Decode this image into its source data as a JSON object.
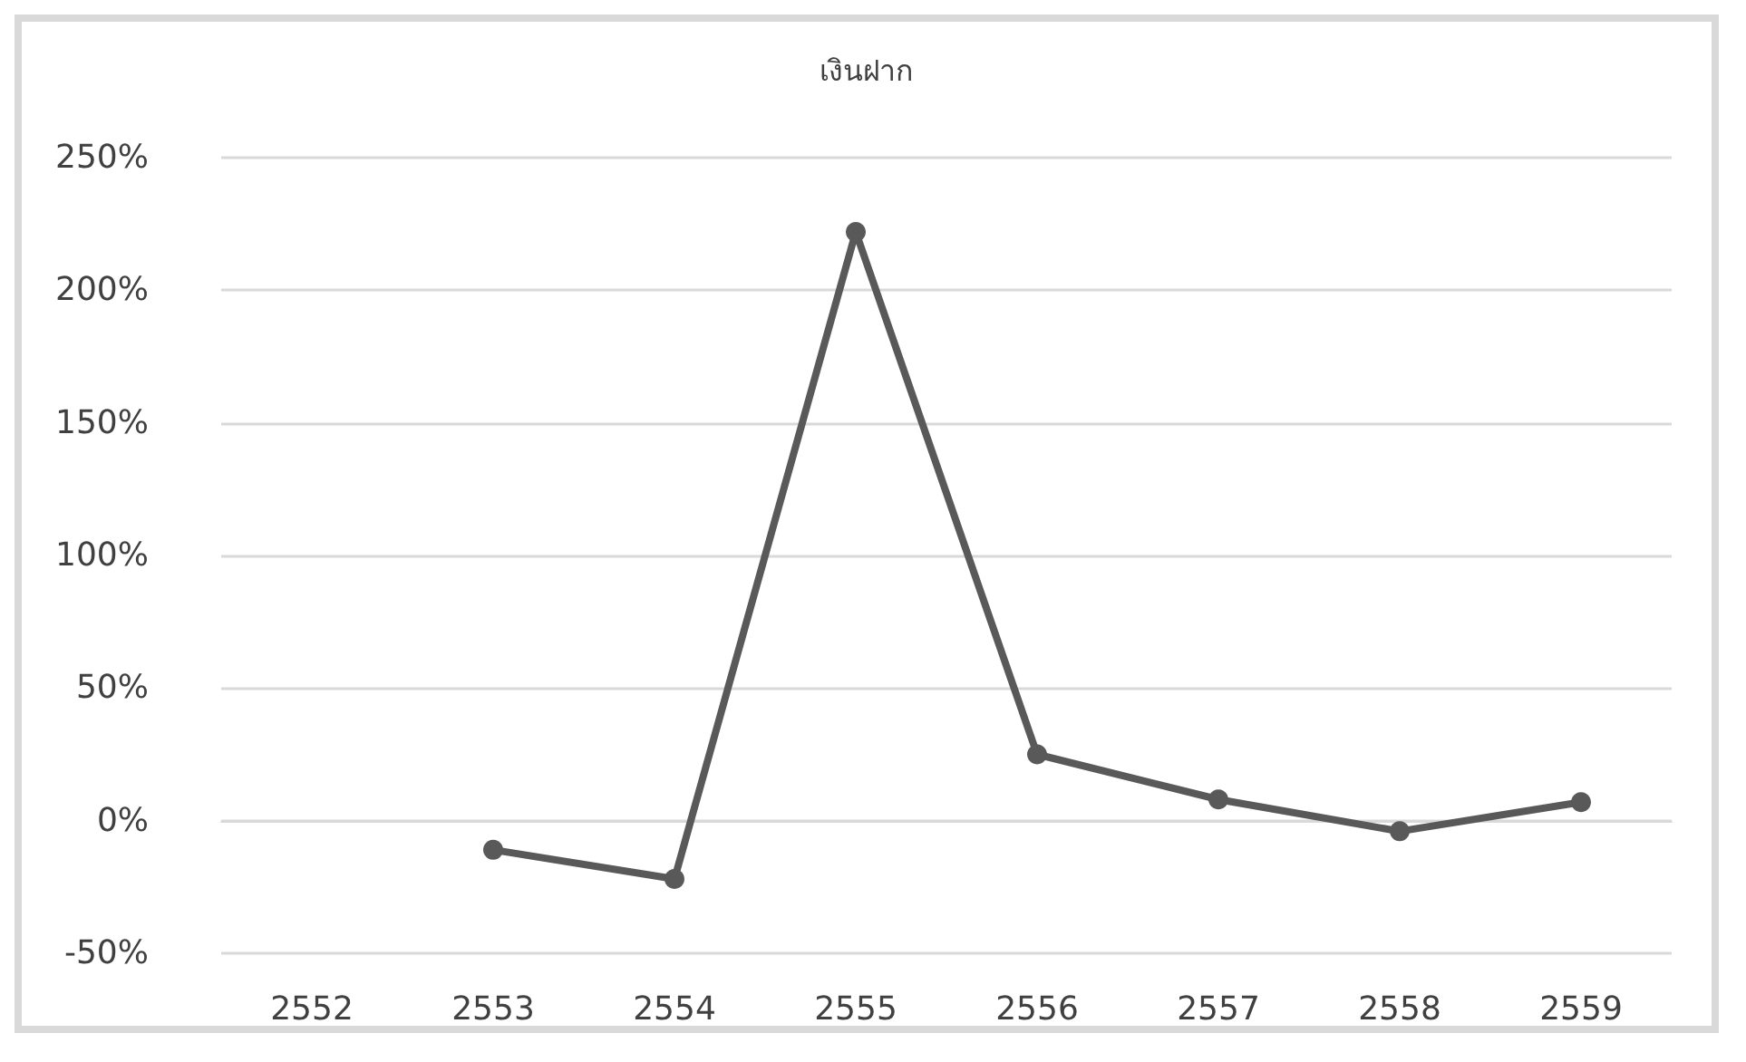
{
  "chart_data": {
    "type": "line",
    "title": "เงินฝาก",
    "categories": [
      "2552",
      "2553",
      "2554",
      "2555",
      "2556",
      "2557",
      "2558",
      "2559"
    ],
    "series": [
      {
        "color": "#595959",
        "values": [
          null,
          -11,
          -22,
          222,
          25,
          8,
          -4,
          7
        ]
      }
    ],
    "ylim": [
      -50,
      250
    ],
    "yticks": [
      {
        "value": -50,
        "label": "-50%"
      },
      {
        "value": 0,
        "label": "0%"
      },
      {
        "value": 50,
        "label": "50%"
      },
      {
        "value": 100,
        "label": "100%"
      },
      {
        "value": 150,
        "label": "150%"
      },
      {
        "value": 200,
        "label": "200%"
      },
      {
        "value": 250,
        "label": "250%"
      }
    ],
    "grid": "y",
    "marker": "circle",
    "line_style": "solid"
  }
}
